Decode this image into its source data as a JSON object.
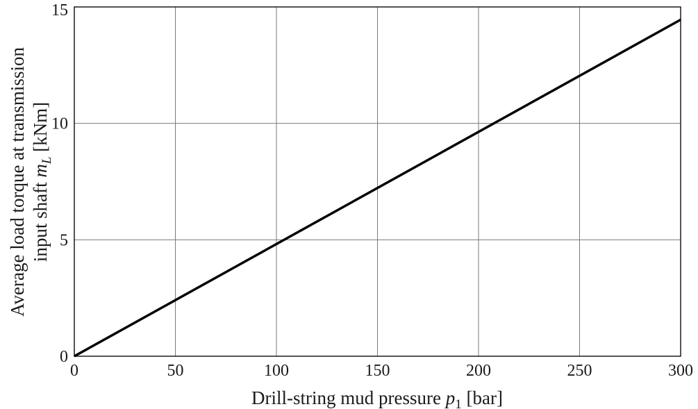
{
  "chart_data": {
    "type": "line",
    "xlabel": {
      "prefix": "Drill-string mud pressure ",
      "symbol": "p",
      "subscript": "1",
      "suffix": " [bar]"
    },
    "ylabel": {
      "line1": "Average load torque at transmission",
      "line2_prefix": "input shaft ",
      "symbol": "m",
      "subscript": "L",
      "line2_suffix": " [kNm]"
    },
    "xlim": [
      0,
      300
    ],
    "ylim": [
      0,
      15
    ],
    "xticks": [
      "0",
      "50",
      "100",
      "150",
      "200",
      "250",
      "300"
    ],
    "yticks": [
      "0",
      "5",
      "10",
      "15"
    ],
    "grid": true,
    "series": [
      {
        "x": [
          0,
          300
        ],
        "y": [
          0,
          14.45
        ]
      }
    ]
  }
}
